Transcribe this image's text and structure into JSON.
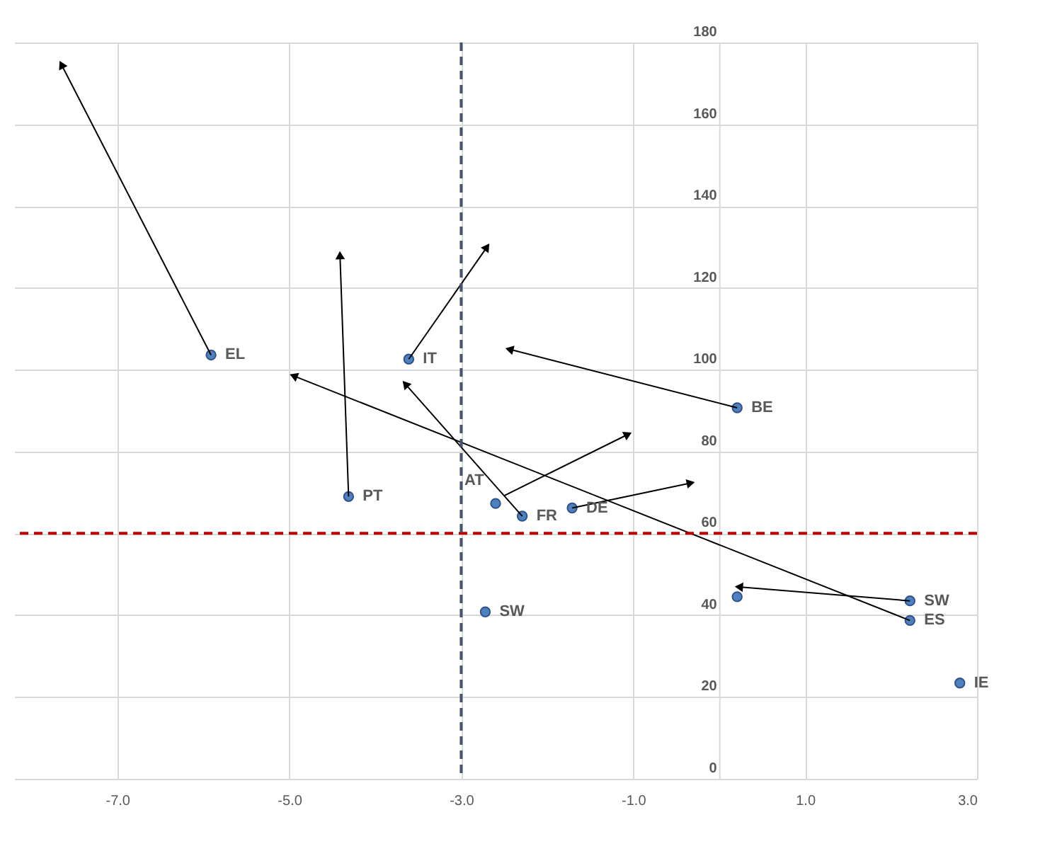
{
  "chart_data": {
    "type": "scatter",
    "xlim": [
      -8.2,
      3
    ],
    "ylim": [
      0,
      180
    ],
    "xticks": [
      {
        "value": -7,
        "label": "-7.0"
      },
      {
        "value": -5,
        "label": "-5.0"
      },
      {
        "value": -3,
        "label": "-3.0"
      },
      {
        "value": -1,
        "label": "-1.0"
      },
      {
        "value": 1,
        "label": "1.0"
      },
      {
        "value": 3,
        "label": "3.0"
      }
    ],
    "yticks": [
      0,
      20,
      40,
      60,
      80,
      100,
      120,
      140,
      160,
      180
    ],
    "grid": true,
    "series": [
      {
        "color": "#4f81bd",
        "marker": "circle",
        "x": [
          -5.91,
          -4.31,
          -3.61,
          -2.6,
          -2.29,
          -1.71,
          -2.72,
          0.21,
          2.22,
          2.22,
          2.8,
          0.21
        ],
        "values": [
          103.6,
          69,
          102.6,
          67.3,
          64.2,
          66.2,
          40.8,
          90.7,
          43.5,
          38.7,
          23.4,
          44.5
        ]
      },
      {
        "type": "line",
        "color": "#000000",
        "x": [
          -5.91,
          -7.65
        ],
        "values": [
          103.6,
          174.6
        ]
      },
      {
        "type": "line",
        "color": "#000000",
        "x": [
          -4.31,
          -4.41
        ],
        "values": [
          69,
          128
        ]
      },
      {
        "type": "line",
        "color": "#000000",
        "x": [
          -3.61,
          -2.7
        ],
        "values": [
          102.6,
          130
        ]
      },
      {
        "type": "line",
        "color": "#000000",
        "x": [
          -2.5,
          -1.06
        ],
        "values": [
          69.2,
          84.2
        ]
      },
      {
        "type": "line",
        "color": "#000000",
        "x": [
          -2.29,
          -3.65
        ],
        "values": [
          64.2,
          96.5
        ]
      },
      {
        "type": "line",
        "color": "#000000",
        "x": [
          -1.71,
          -0.33
        ],
        "values": [
          66.2,
          72.3
        ]
      },
      {
        "type": "line",
        "color": "#000000",
        "x": [
          0.21,
          -2.44
        ],
        "values": [
          90.7,
          105
        ]
      },
      {
        "type": "line",
        "color": "#000000",
        "x": [
          2.22,
          -4.95
        ],
        "values": [
          38.7,
          98.5
        ]
      },
      {
        "type": "line",
        "color": "#000000",
        "x": [
          2.22,
          0.23
        ],
        "values": [
          43.5,
          46.9
        ]
      }
    ],
    "ref_lines": [
      {
        "axis": "y",
        "value": 60,
        "color": "#c00000",
        "line_style": "dashed"
      },
      {
        "axis": "x",
        "value": -3,
        "color": "#44546a",
        "line_style": "dashed"
      }
    ],
    "annotations": [
      {
        "text": "EL",
        "x": -5.91,
        "y": 103.6
      },
      {
        "text": "PT",
        "x": -4.31,
        "y": 69
      },
      {
        "text": "IT",
        "x": -3.61,
        "y": 102.6
      },
      {
        "text": "AT",
        "x": -2.6,
        "y": 67.3
      },
      {
        "text": "FR",
        "x": -2.29,
        "y": 64.2
      },
      {
        "text": "DE",
        "x": -1.71,
        "y": 66.2
      },
      {
        "text": "SW",
        "x": -2.72,
        "y": 40.8
      },
      {
        "text": "BE",
        "x": 0.21,
        "y": 90.7
      },
      {
        "text": "SW",
        "x": 2.22,
        "y": 43.5
      },
      {
        "text": "ES",
        "x": 2.22,
        "y": 38.7
      },
      {
        "text": "IE",
        "x": 2.8,
        "y": 23.4
      }
    ]
  }
}
